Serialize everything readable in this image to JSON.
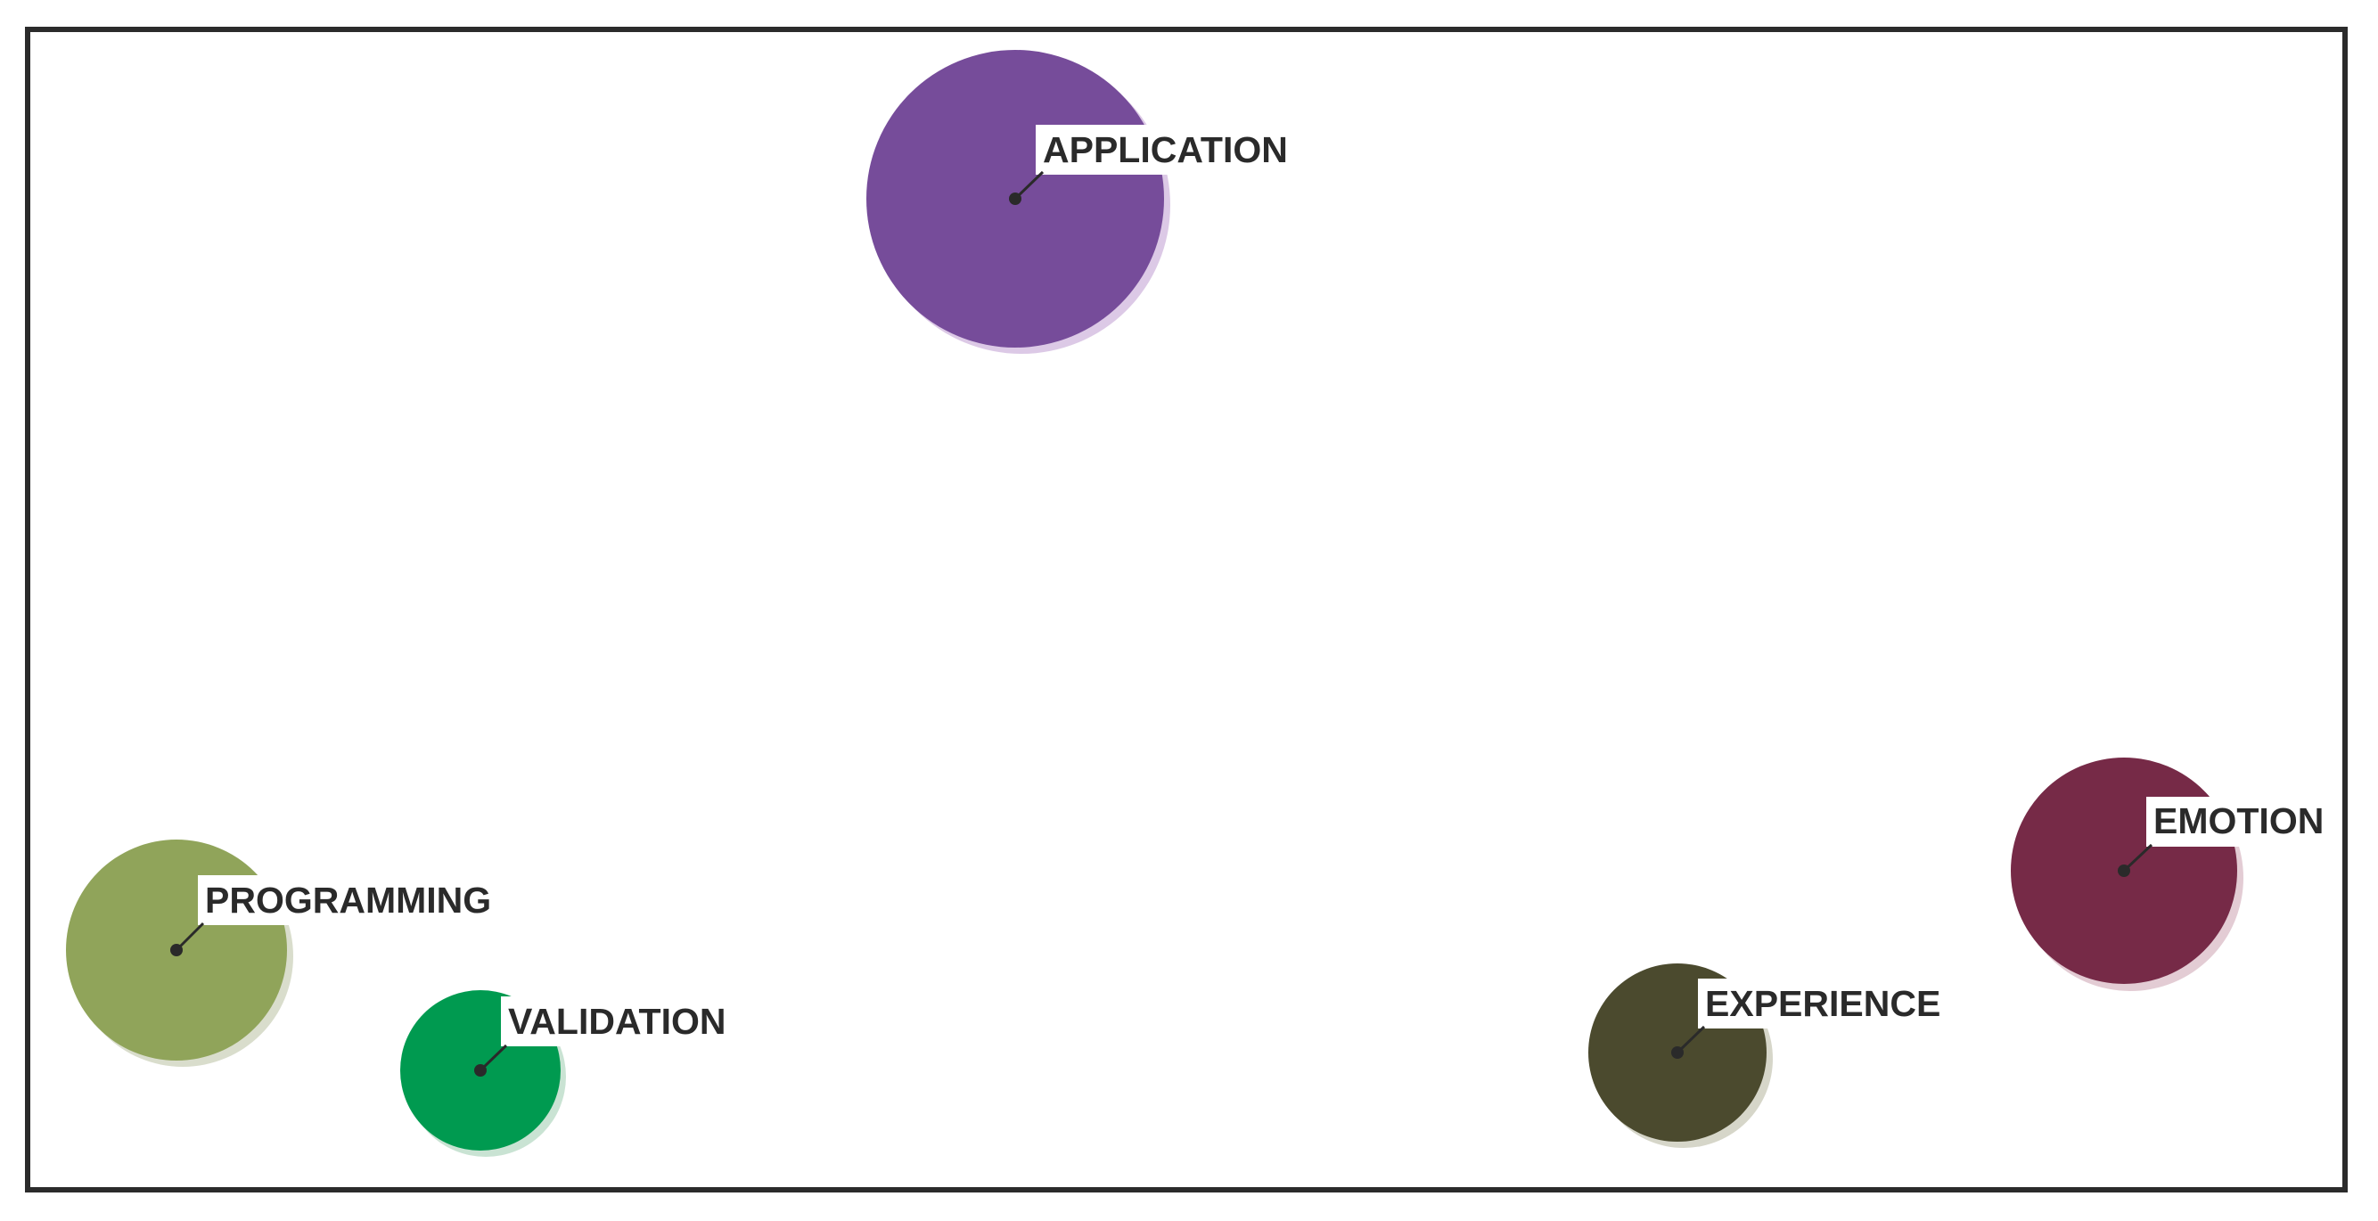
{
  "diagram": {
    "nodes": [
      {
        "id": "application",
        "label": "APPLICATION",
        "color": "#764c9a",
        "shadow": "#dcc9e6"
      },
      {
        "id": "programming",
        "label": "PROGRAMMING",
        "color": "#90a45a",
        "shadow": "#d9ddcc"
      },
      {
        "id": "validation",
        "label": "VALIDATION",
        "color": "#009a50",
        "shadow": "#c9e3d3"
      },
      {
        "id": "experience",
        "label": "EXPERIENCE",
        "color": "#4b4a2e",
        "shadow": "#d6d6c9"
      },
      {
        "id": "emotion",
        "label": "EMOTION",
        "color": "#762a47",
        "shadow": "#e3ccd4"
      }
    ]
  }
}
